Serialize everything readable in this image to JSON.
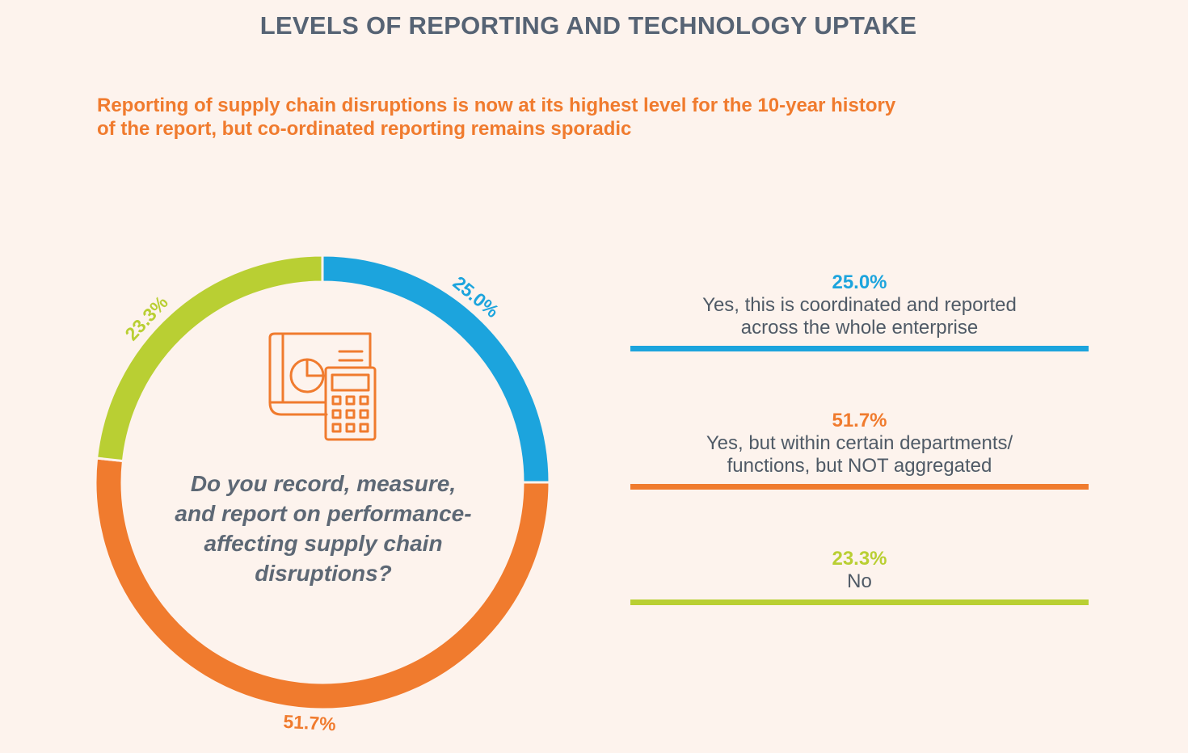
{
  "title": "LEVELS OF REPORTING AND TECHNOLOGY UPTAKE",
  "subtitle_lines": [
    "Reporting of supply chain disruptions is now at its highest level for the 10-year history",
    "of the report, but co-ordinated reporting remains sporadic"
  ],
  "center_icon": "calculator-report-icon",
  "question_lines": [
    "Do you record, measure,",
    "and report on performance-",
    "affecting supply chain",
    "disruptions?"
  ],
  "legend": [
    {
      "pct": "25.0%",
      "lines": [
        "Yes, this is coordinated and reported",
        "across the whole enterprise"
      ],
      "color": "#1ca4dd"
    },
    {
      "pct": "51.7%",
      "lines": [
        "Yes, but within certain departments/",
        "functions, but NOT aggregated"
      ],
      "color": "#f07b2e"
    },
    {
      "pct": "23.3%",
      "lines": [
        "No"
      ],
      "color": "#b9cf33"
    }
  ],
  "chart_data": {
    "type": "pie",
    "categories": [
      "25.0%",
      "51.7%",
      "23.3%"
    ],
    "values": [
      25.0,
      51.7,
      23.3
    ],
    "labels": [
      "25.0%",
      "51.7%",
      "23.3%"
    ],
    "colors": [
      "#1ca4dd",
      "#f07b2e",
      "#b9cf33"
    ],
    "title": "LEVELS OF REPORTING AND TECHNOLOGY UPTAKE"
  }
}
